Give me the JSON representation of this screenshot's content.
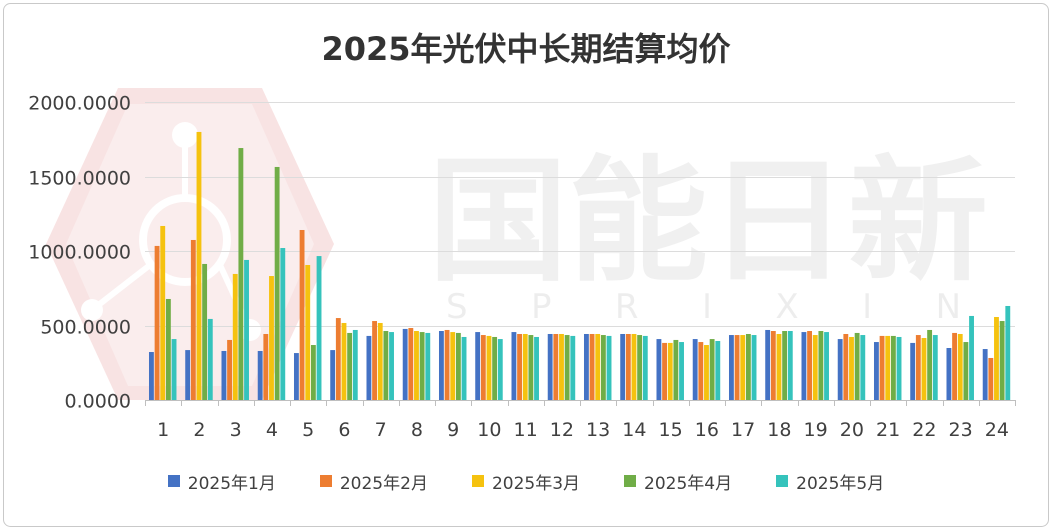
{
  "watermark": {
    "text": "国能日新",
    "subtext": "SPRIXIN"
  },
  "chart_data": {
    "type": "bar",
    "title": "2025年光伏中长期结算均价",
    "xlabel": "",
    "ylabel": "",
    "categories": [
      "1",
      "2",
      "3",
      "4",
      "5",
      "6",
      "7",
      "8",
      "9",
      "10",
      "11",
      "12",
      "13",
      "14",
      "15",
      "16",
      "17",
      "18",
      "19",
      "20",
      "21",
      "22",
      "23",
      "24"
    ],
    "ylim": [
      0,
      2000
    ],
    "yticks": [
      "0.0000",
      "500.0000",
      "1000.0000",
      "1500.0000",
      "2000.0000"
    ],
    "ytick_values": [
      0,
      500,
      1000,
      1500,
      2000
    ],
    "grid": true,
    "legend": "bottom",
    "series": [
      {
        "name": "2025年1月",
        "color": "#4472C4",
        "values": [
          322,
          335,
          329,
          329,
          315,
          335,
          430,
          477,
          463,
          456,
          456,
          443,
          443,
          443,
          409,
          409,
          436,
          470,
          456,
          409,
          389,
          383,
          349,
          342
        ]
      },
      {
        "name": "2025年2月",
        "color": "#ED7D31",
        "values": [
          1034,
          1074,
          403,
          443,
          1141,
          550,
          530,
          483,
          470,
          436,
          443,
          443,
          443,
          443,
          383,
          389,
          436,
          463,
          463,
          443,
          430,
          436,
          450,
          282
        ]
      },
      {
        "name": "2025年3月",
        "color": "#F5C20F",
        "values": [
          1168,
          1799,
          846,
          832,
          906,
          517,
          517,
          463,
          456,
          430,
          443,
          443,
          443,
          443,
          383,
          369,
          436,
          443,
          436,
          423,
          430,
          416,
          443,
          557
        ]
      },
      {
        "name": "2025年4月",
        "color": "#70AD47",
        "values": [
          678,
          913,
          1691,
          1564,
          369,
          450,
          463,
          456,
          450,
          423,
          436,
          436,
          436,
          436,
          403,
          409,
          443,
          463,
          463,
          450,
          430,
          470,
          389,
          530
        ]
      },
      {
        "name": "2025年5月",
        "color": "#35C3BC",
        "values": [
          409,
          544,
          940,
          1020,
          966,
          470,
          456,
          450,
          423,
          409,
          423,
          430,
          430,
          430,
          389,
          396,
          436,
          463,
          456,
          436,
          423,
          436,
          564,
          631
        ]
      }
    ]
  }
}
